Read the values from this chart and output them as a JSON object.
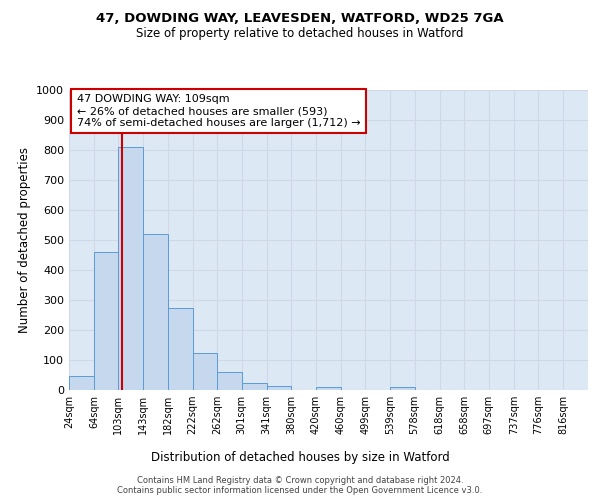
{
  "title1": "47, DOWDING WAY, LEAVESDEN, WATFORD, WD25 7GA",
  "title2": "Size of property relative to detached houses in Watford",
  "xlabel": "Distribution of detached houses by size in Watford",
  "ylabel": "Number of detached properties",
  "bin_labels": [
    "24sqm",
    "64sqm",
    "103sqm",
    "143sqm",
    "182sqm",
    "222sqm",
    "262sqm",
    "301sqm",
    "341sqm",
    "380sqm",
    "420sqm",
    "460sqm",
    "499sqm",
    "539sqm",
    "578sqm",
    "618sqm",
    "658sqm",
    "697sqm",
    "737sqm",
    "776sqm",
    "816sqm"
  ],
  "bar_heights": [
    47,
    460,
    810,
    520,
    275,
    125,
    60,
    22,
    12,
    0,
    10,
    0,
    0,
    10,
    0,
    0,
    0,
    0,
    0,
    0,
    0
  ],
  "bar_color": "#c5d8ed",
  "bar_edge_color": "#5b9bd5",
  "grid_color": "#d0d8e8",
  "background_color": "#dce9f5",
  "red_line_x": 109,
  "bin_edges": [
    24,
    64,
    103,
    143,
    182,
    222,
    262,
    301,
    341,
    380,
    420,
    460,
    499,
    539,
    578,
    618,
    658,
    697,
    737,
    776,
    816,
    856
  ],
  "annotation_line1": "47 DOWDING WAY: 109sqm",
  "annotation_line2": "← 26% of detached houses are smaller (593)",
  "annotation_line3": "74% of semi-detached houses are larger (1,712) →",
  "annotation_box_color": "#cc0000",
  "ylim": [
    0,
    1000
  ],
  "yticks": [
    0,
    100,
    200,
    300,
    400,
    500,
    600,
    700,
    800,
    900,
    1000
  ],
  "footer_line1": "Contains HM Land Registry data © Crown copyright and database right 2024.",
  "footer_line2": "Contains public sector information licensed under the Open Government Licence v3.0."
}
